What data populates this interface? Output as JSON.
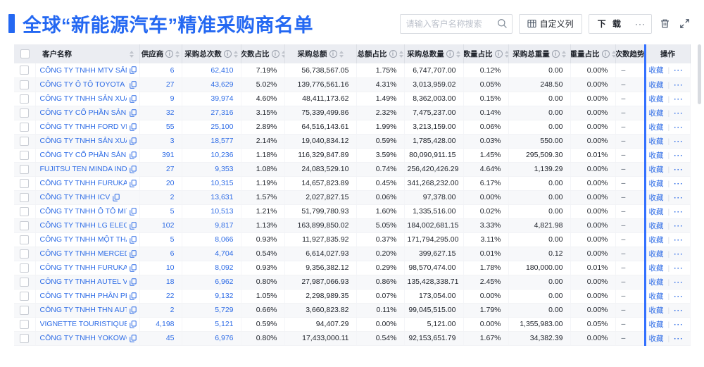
{
  "page_title": "全球“新能源汽车”精准采购商名单",
  "toolbar": {
    "search_placeholder": "请输入客户名称搜索",
    "customize_columns_label": "自定义列",
    "download_label": "下 载",
    "more_label": "···"
  },
  "colors": {
    "accent_blue": "#2468F2",
    "link_blue": "#2E6CE6",
    "fixed_column_line": "#3370FF",
    "header_bg": "#EBEDF2"
  },
  "table": {
    "columns": [
      {
        "key": "name",
        "label": "客户名称",
        "info": false,
        "sort": true
      },
      {
        "key": "suppliers",
        "label": "供应商",
        "info": true,
        "sort": true
      },
      {
        "key": "purchases",
        "label": "采购总次数",
        "info": true,
        "sort": true
      },
      {
        "key": "count_pct",
        "label": "次数占比",
        "info": true,
        "sort": true
      },
      {
        "key": "amount",
        "label": "采购总额",
        "info": true,
        "sort": true
      },
      {
        "key": "amount_pct",
        "label": "总额占比",
        "info": true,
        "sort": true
      },
      {
        "key": "quantity",
        "label": "采购总数量",
        "info": true,
        "sort": true
      },
      {
        "key": "quantity_pct",
        "label": "数量占比",
        "info": true,
        "sort": true
      },
      {
        "key": "weight",
        "label": "采购总重量",
        "info": true,
        "sort": true
      },
      {
        "key": "weight_pct",
        "label": "重量占比",
        "info": true,
        "sort": true
      },
      {
        "key": "trend",
        "label": "次数趋势",
        "info": false,
        "sort": false
      },
      {
        "key": "actions",
        "label": "操作",
        "info": false,
        "sort": false
      }
    ],
    "trend_placeholder": "–",
    "actions": {
      "favorite_label": "收藏",
      "more_label": "···"
    },
    "rows": [
      {
        "name": "CÔNG TY TNHH MTV SẢN XUẤ...",
        "suppliers": "6",
        "purchases": "62,410",
        "count_pct": "7.19%",
        "amount": "56,738,567.05",
        "amount_pct": "1.75%",
        "quantity": "6,747,707.00",
        "quantity_pct": "0.12%",
        "weight": "0.00",
        "weight_pct": "0.00%"
      },
      {
        "name": "CÔNG TY Ô TÔ TOYOTA VIỆT ...",
        "suppliers": "27",
        "purchases": "43,629",
        "count_pct": "5.02%",
        "amount": "139,776,561.16",
        "amount_pct": "4.31%",
        "quantity": "3,013,959.02",
        "quantity_pct": "0.05%",
        "weight": "248.50",
        "weight_pct": "0.00%"
      },
      {
        "name": "CÔNG TY TNHH SẢN XUẤT VÀ ...",
        "suppliers": "9",
        "purchases": "39,974",
        "count_pct": "4.60%",
        "amount": "48,411,173.62",
        "amount_pct": "1.49%",
        "quantity": "8,362,003.00",
        "quantity_pct": "0.15%",
        "weight": "0.00",
        "weight_pct": "0.00%"
      },
      {
        "name": "CÔNG TY CỔ PHẦN SẢN XUẤT...",
        "suppliers": "32",
        "purchases": "27,316",
        "count_pct": "3.15%",
        "amount": "75,339,499.86",
        "amount_pct": "2.32%",
        "quantity": "7,475,237.00",
        "quantity_pct": "0.14%",
        "weight": "0.00",
        "weight_pct": "0.00%"
      },
      {
        "name": "CÔNG TY TNHH FORD VIỆT NAM",
        "suppliers": "55",
        "purchases": "25,100",
        "count_pct": "2.89%",
        "amount": "64,516,143.61",
        "amount_pct": "1.99%",
        "quantity": "3,213,159.00",
        "quantity_pct": "0.06%",
        "weight": "0.00",
        "weight_pct": "0.00%"
      },
      {
        "name": "CÔNG TY TNHH SẢN XUẤT VÀ ...",
        "suppliers": "3",
        "purchases": "18,577",
        "count_pct": "2.14%",
        "amount": "19,040,834.12",
        "amount_pct": "0.59%",
        "quantity": "1,785,428.00",
        "quantity_pct": "0.03%",
        "weight": "550.00",
        "weight_pct": "0.00%"
      },
      {
        "name": "CÔNG TY CỔ PHẦN SẢN XUẤT...",
        "suppliers": "391",
        "purchases": "10,236",
        "count_pct": "1.18%",
        "amount": "116,329,847.89",
        "amount_pct": "3.59%",
        "quantity": "80,090,911.15",
        "quantity_pct": "1.45%",
        "weight": "295,509.30",
        "weight_pct": "0.01%"
      },
      {
        "name": "FUJITSU TEN MINDA INDIA PVT...",
        "suppliers": "27",
        "purchases": "9,353",
        "count_pct": "1.08%",
        "amount": "24,083,529.10",
        "amount_pct": "0.74%",
        "quantity": "256,420,426.29",
        "quantity_pct": "4.64%",
        "weight": "1,139.29",
        "weight_pct": "0.00%"
      },
      {
        "name": "CÔNG TY TNHH FURUKAWA A...",
        "suppliers": "20",
        "purchases": "10,315",
        "count_pct": "1.19%",
        "amount": "14,657,823.89",
        "amount_pct": "0.45%",
        "quantity": "341,268,232.00",
        "quantity_pct": "6.17%",
        "weight": "0.00",
        "weight_pct": "0.00%"
      },
      {
        "name": "CÔNG TY TNHH ICV",
        "suppliers": "2",
        "purchases": "13,631",
        "count_pct": "1.57%",
        "amount": "2,027,827.15",
        "amount_pct": "0.06%",
        "quantity": "97,378.00",
        "quantity_pct": "0.00%",
        "weight": "0.00",
        "weight_pct": "0.00%"
      },
      {
        "name": "CÔNG TY TNHH Ô TÔ MITSUBI...",
        "suppliers": "5",
        "purchases": "10,513",
        "count_pct": "1.21%",
        "amount": "51,799,780.93",
        "amount_pct": "1.60%",
        "quantity": "1,335,516.00",
        "quantity_pct": "0.02%",
        "weight": "0.00",
        "weight_pct": "0.00%"
      },
      {
        "name": "CÔNG TY TNHH LG ELECTRON...",
        "suppliers": "102",
        "purchases": "9,817",
        "count_pct": "1.13%",
        "amount": "163,899,850.02",
        "amount_pct": "5.05%",
        "quantity": "184,002,681.15",
        "quantity_pct": "3.33%",
        "weight": "4,821.98",
        "weight_pct": "0.00%"
      },
      {
        "name": "CÔNG TY TNHH MỘT THÀNH V...",
        "suppliers": "5",
        "purchases": "8,066",
        "count_pct": "0.93%",
        "amount": "11,927,835.92",
        "amount_pct": "0.37%",
        "quantity": "171,794,295.00",
        "quantity_pct": "3.11%",
        "weight": "0.00",
        "weight_pct": "0.00%"
      },
      {
        "name": "CÔNG TY TNHH MERCEDES–B...",
        "suppliers": "6",
        "purchases": "4,704",
        "count_pct": "0.54%",
        "amount": "6,614,027.93",
        "amount_pct": "0.20%",
        "quantity": "399,627.15",
        "quantity_pct": "0.01%",
        "weight": "0.12",
        "weight_pct": "0.00%"
      },
      {
        "name": "CÔNG TY TNHH FURUKAWA A...",
        "suppliers": "10",
        "purchases": "8,092",
        "count_pct": "0.93%",
        "amount": "9,356,382.12",
        "amount_pct": "0.29%",
        "quantity": "98,570,474.00",
        "quantity_pct": "1.78%",
        "weight": "180,000.00",
        "weight_pct": "0.01%"
      },
      {
        "name": "CÔNG TY TNHH AUTEL VIỆT N...",
        "suppliers": "18",
        "purchases": "6,962",
        "count_pct": "0.80%",
        "amount": "27,987,066.93",
        "amount_pct": "0.86%",
        "quantity": "135,428,338.71",
        "quantity_pct": "2.45%",
        "weight": "0.00",
        "weight_pct": "0.00%"
      },
      {
        "name": "CÔNG TY TNHH PHÂN PHỐI T...",
        "suppliers": "22",
        "purchases": "9,132",
        "count_pct": "1.05%",
        "amount": "2,298,989.35",
        "amount_pct": "0.07%",
        "quantity": "173,054.00",
        "quantity_pct": "0.00%",
        "weight": "0.00",
        "weight_pct": "0.00%"
      },
      {
        "name": "CÔNG TY TNHH THN AUTOPAR...",
        "suppliers": "2",
        "purchases": "5,729",
        "count_pct": "0.66%",
        "amount": "3,660,823.82",
        "amount_pct": "0.11%",
        "quantity": "99,045,515.00",
        "quantity_pct": "1.79%",
        "weight": "0.00",
        "weight_pct": "0.00%"
      },
      {
        "name": "VIGNETTE TOURISTIQUE G UNI...",
        "suppliers": "4,198",
        "purchases": "5,121",
        "count_pct": "0.59%",
        "amount": "94,407.29",
        "amount_pct": "0.00%",
        "quantity": "5,121.00",
        "quantity_pct": "0.00%",
        "weight": "1,355,983.00",
        "weight_pct": "0.05%"
      },
      {
        "name": "CÔNG TY TNHH YOKOWO VIỆT...",
        "suppliers": "45",
        "purchases": "6,976",
        "count_pct": "0.80%",
        "amount": "17,433,000.11",
        "amount_pct": "0.54%",
        "quantity": "92,153,651.79",
        "quantity_pct": "1.67%",
        "weight": "34,382.39",
        "weight_pct": "0.00%"
      }
    ]
  }
}
